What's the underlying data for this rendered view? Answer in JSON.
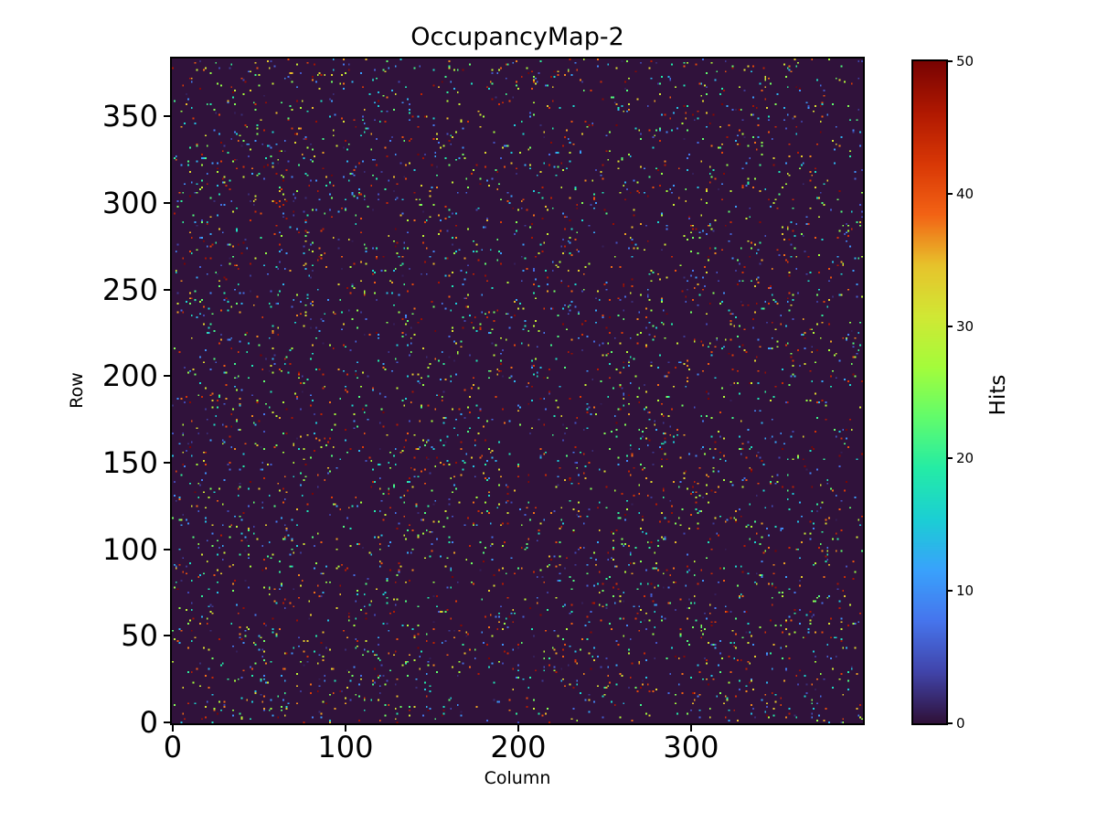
{
  "figure_title": "OccupancyMap-2",
  "chart_data": {
    "type": "heatmap",
    "title": "OccupancyMap-2",
    "xlabel": "Column",
    "ylabel": "Row",
    "colorbar_label": "Hits",
    "x_ticks": [
      0,
      100,
      200,
      300
    ],
    "y_ticks": [
      0,
      50,
      100,
      150,
      200,
      250,
      300,
      350
    ],
    "colorbar_ticks": [
      0,
      10,
      20,
      30,
      40,
      50
    ],
    "xlim": [
      0,
      400
    ],
    "ylim": [
      0,
      384
    ],
    "value_range": [
      0,
      50
    ],
    "grid_columns": 400,
    "grid_rows": 384,
    "colormap": "turbo",
    "colormap_stops": [
      "#30123b",
      "#4145ab",
      "#4675ed",
      "#39a2fc",
      "#1bcfd4",
      "#24eca6",
      "#61fc6c",
      "#a4fc3b",
      "#d1e834",
      "#e7c32c",
      "#f36315",
      "#d93806",
      "#b11901",
      "#7a0402"
    ],
    "background_value": 0,
    "occupancy_fraction": 0.03,
    "hit_values": "uniform integers 1-50",
    "random_seed": 1337,
    "grid": false,
    "legend": "none"
  }
}
